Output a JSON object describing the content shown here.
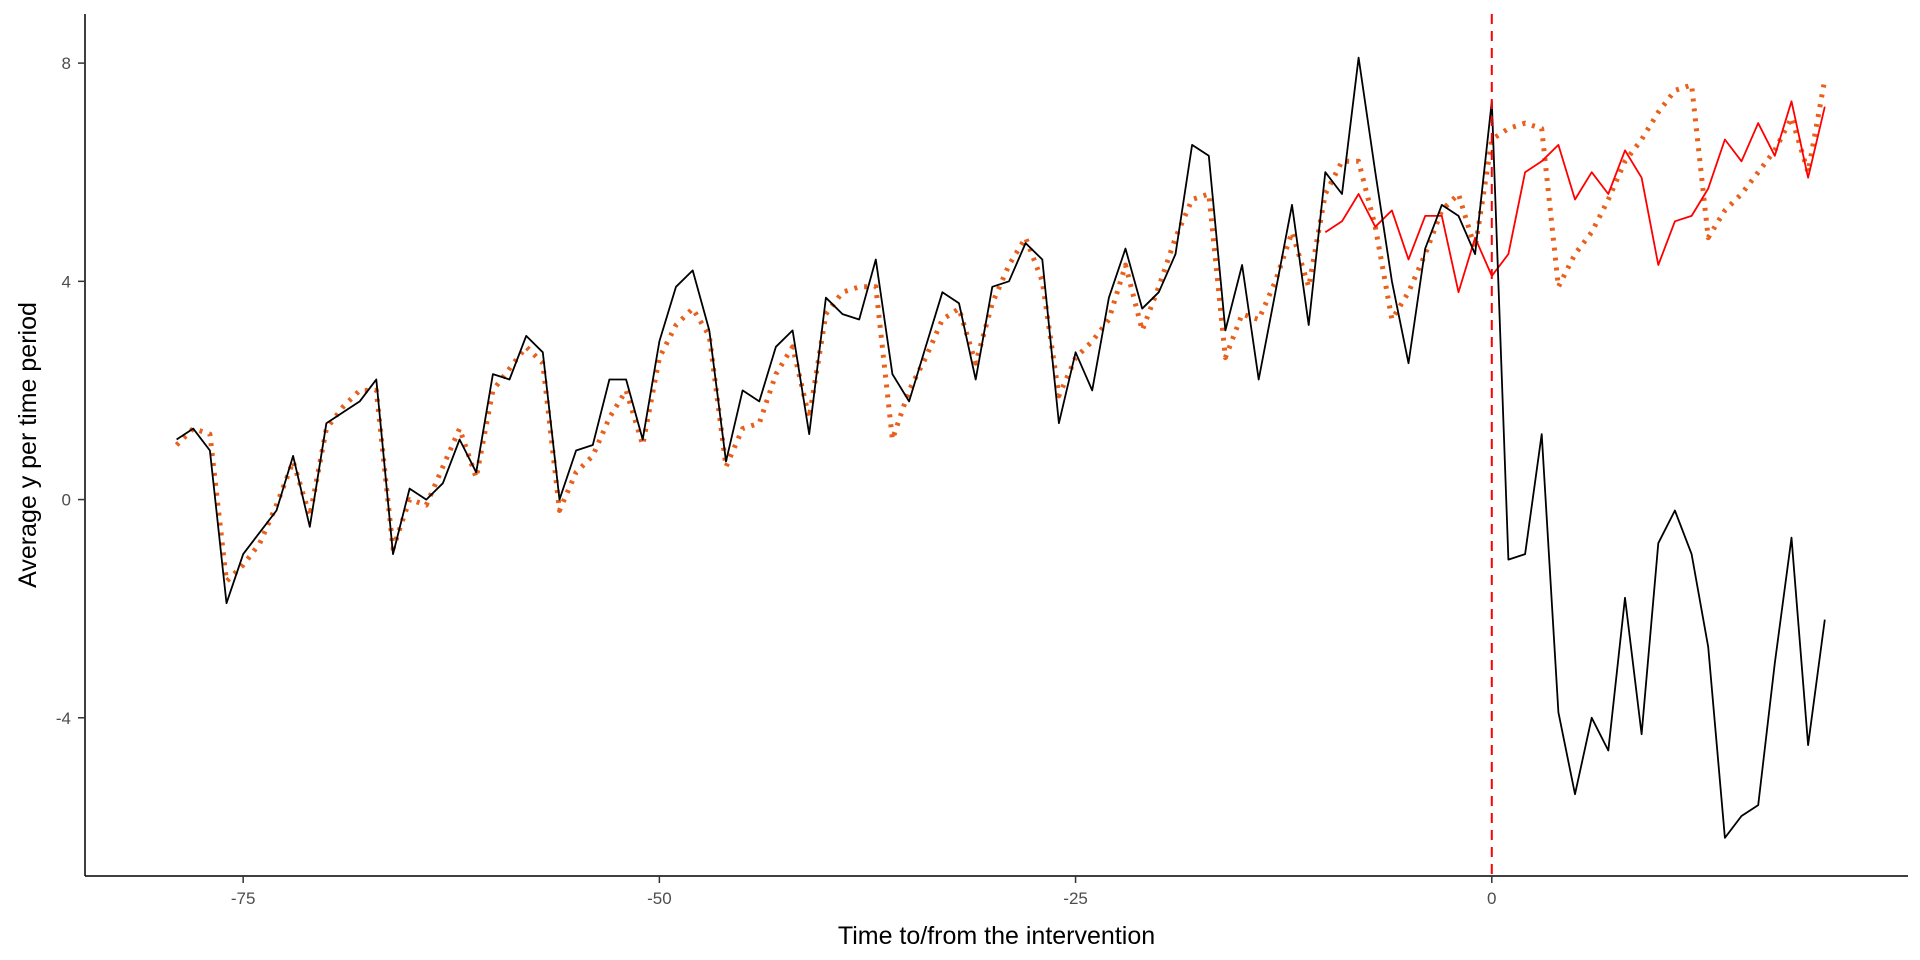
{
  "chart_data": {
    "type": "line",
    "xlabel": "Time to/from the intervention",
    "ylabel": "Average y per time period",
    "xlim": [
      -84.5,
      25
    ],
    "ylim": [
      -6.9,
      8.9
    ],
    "x_ticks": [
      -75,
      -50,
      -25,
      0
    ],
    "x_tick_labels": [
      "-75",
      "-50",
      "-25",
      "0"
    ],
    "y_ticks": [
      -4,
      0,
      4,
      8
    ],
    "y_tick_labels": [
      "-4",
      "0",
      "4",
      "8"
    ],
    "grid": false,
    "legend": "none",
    "vline": {
      "x": 0,
      "color": "#ff0000",
      "style": "dashed"
    },
    "series": [
      {
        "id": "observed",
        "color": "#000000",
        "style": "solid",
        "points": [
          [
            -79,
            1.1
          ],
          [
            -78,
            1.3
          ],
          [
            -77,
            0.9
          ],
          [
            -76,
            -1.9
          ],
          [
            -75,
            -1.0
          ],
          [
            -74,
            -0.6
          ],
          [
            -73,
            -0.2
          ],
          [
            -72,
            0.8
          ],
          [
            -71,
            -0.5
          ],
          [
            -70,
            1.4
          ],
          [
            -69,
            1.6
          ],
          [
            -68,
            1.8
          ],
          [
            -67,
            2.2
          ],
          [
            -66,
            -1.0
          ],
          [
            -65,
            0.2
          ],
          [
            -64,
            0.0
          ],
          [
            -63,
            0.3
          ],
          [
            -62,
            1.1
          ],
          [
            -61,
            0.5
          ],
          [
            -60,
            2.3
          ],
          [
            -59,
            2.2
          ],
          [
            -58,
            3.0
          ],
          [
            -57,
            2.7
          ],
          [
            -56,
            0.0
          ],
          [
            -55,
            0.9
          ],
          [
            -54,
            1.0
          ],
          [
            -53,
            2.2
          ],
          [
            -52,
            2.2
          ],
          [
            -51,
            1.1
          ],
          [
            -50,
            2.9
          ],
          [
            -49,
            3.9
          ],
          [
            -48,
            4.2
          ],
          [
            -47,
            3.1
          ],
          [
            -46,
            0.7
          ],
          [
            -45,
            2.0
          ],
          [
            -44,
            1.8
          ],
          [
            -43,
            2.8
          ],
          [
            -42,
            3.1
          ],
          [
            -41,
            1.2
          ],
          [
            -40,
            3.7
          ],
          [
            -39,
            3.4
          ],
          [
            -38,
            3.3
          ],
          [
            -37,
            4.4
          ],
          [
            -36,
            2.3
          ],
          [
            -35,
            1.8
          ],
          [
            -34,
            2.8
          ],
          [
            -33,
            3.8
          ],
          [
            -32,
            3.6
          ],
          [
            -31,
            2.2
          ],
          [
            -30,
            3.9
          ],
          [
            -29,
            4.0
          ],
          [
            -28,
            4.7
          ],
          [
            -27,
            4.4
          ],
          [
            -26,
            1.4
          ],
          [
            -25,
            2.7
          ],
          [
            -24,
            2.0
          ],
          [
            -23,
            3.7
          ],
          [
            -22,
            4.6
          ],
          [
            -21,
            3.5
          ],
          [
            -20,
            3.8
          ],
          [
            -19,
            4.5
          ],
          [
            -18,
            6.5
          ],
          [
            -17,
            6.3
          ],
          [
            -16,
            3.1
          ],
          [
            -15,
            4.3
          ],
          [
            -14,
            2.2
          ],
          [
            -13,
            3.8
          ],
          [
            -12,
            5.4
          ],
          [
            -11,
            3.2
          ],
          [
            -10,
            6.0
          ],
          [
            -9,
            5.6
          ],
          [
            -8,
            8.1
          ],
          [
            -7,
            6.0
          ],
          [
            -6,
            4.0
          ],
          [
            -5,
            2.5
          ],
          [
            -4,
            4.6
          ],
          [
            -3,
            5.4
          ],
          [
            -2,
            5.2
          ],
          [
            -1,
            4.5
          ],
          [
            0,
            7.3
          ],
          [
            1,
            -1.1
          ],
          [
            2,
            -1.0
          ],
          [
            3,
            1.2
          ],
          [
            4,
            -3.9
          ],
          [
            5,
            -5.4
          ],
          [
            6,
            -4.0
          ],
          [
            7,
            -4.6
          ],
          [
            8,
            -1.8
          ],
          [
            9,
            -4.3
          ],
          [
            10,
            -0.8
          ],
          [
            11,
            -0.2
          ],
          [
            12,
            -1.0
          ],
          [
            13,
            -2.7
          ],
          [
            14,
            -6.2
          ],
          [
            15,
            -5.8
          ],
          [
            16,
            -5.6
          ],
          [
            17,
            -3.0
          ],
          [
            18,
            -0.7
          ],
          [
            19,
            -4.5
          ],
          [
            20,
            -2.2
          ]
        ]
      },
      {
        "id": "fitted",
        "color": "#e8601c",
        "style": "dotted",
        "points": [
          [
            -79,
            1.0
          ],
          [
            -78,
            1.3
          ],
          [
            -77,
            1.2
          ],
          [
            -76,
            -1.5
          ],
          [
            -75,
            -1.2
          ],
          [
            -74,
            -0.8
          ],
          [
            -73,
            -0.1
          ],
          [
            -72,
            0.7
          ],
          [
            -71,
            -0.3
          ],
          [
            -70,
            1.3
          ],
          [
            -69,
            1.7
          ],
          [
            -68,
            2.0
          ],
          [
            -67,
            2.0
          ],
          [
            -66,
            -0.9
          ],
          [
            -65,
            0.0
          ],
          [
            -64,
            -0.1
          ],
          [
            -63,
            0.6
          ],
          [
            -62,
            1.3
          ],
          [
            -61,
            0.4
          ],
          [
            -60,
            2.0
          ],
          [
            -59,
            2.4
          ],
          [
            -58,
            2.8
          ],
          [
            -57,
            2.5
          ],
          [
            -56,
            -0.2
          ],
          [
            -55,
            0.5
          ],
          [
            -54,
            0.8
          ],
          [
            -53,
            1.5
          ],
          [
            -52,
            2.0
          ],
          [
            -51,
            1.0
          ],
          [
            -50,
            2.6
          ],
          [
            -49,
            3.2
          ],
          [
            -48,
            3.5
          ],
          [
            -47,
            3.0
          ],
          [
            -46,
            0.6
          ],
          [
            -45,
            1.3
          ],
          [
            -44,
            1.4
          ],
          [
            -43,
            2.3
          ],
          [
            -42,
            2.8
          ],
          [
            -41,
            1.5
          ],
          [
            -40,
            3.4
          ],
          [
            -39,
            3.8
          ],
          [
            -38,
            3.9
          ],
          [
            -37,
            3.9
          ],
          [
            -36,
            1.1
          ],
          [
            -35,
            2.0
          ],
          [
            -34,
            2.6
          ],
          [
            -33,
            3.3
          ],
          [
            -32,
            3.5
          ],
          [
            -31,
            2.5
          ],
          [
            -30,
            3.6
          ],
          [
            -29,
            4.3
          ],
          [
            -28,
            4.8
          ],
          [
            -27,
            4.0
          ],
          [
            -26,
            1.9
          ],
          [
            -25,
            2.6
          ],
          [
            -24,
            2.9
          ],
          [
            -23,
            3.3
          ],
          [
            -22,
            4.3
          ],
          [
            -21,
            3.1
          ],
          [
            -20,
            3.9
          ],
          [
            -19,
            4.8
          ],
          [
            -18,
            5.5
          ],
          [
            -17,
            5.6
          ],
          [
            -16,
            2.6
          ],
          [
            -15,
            3.4
          ],
          [
            -14,
            3.3
          ],
          [
            -13,
            4.0
          ],
          [
            -12,
            4.9
          ],
          [
            -11,
            3.9
          ],
          [
            -10,
            5.6
          ],
          [
            -9,
            6.2
          ],
          [
            -8,
            6.2
          ],
          [
            -7,
            5.0
          ],
          [
            -6,
            3.3
          ],
          [
            -5,
            3.8
          ],
          [
            -4,
            4.5
          ],
          [
            -3,
            5.3
          ],
          [
            -2,
            5.6
          ],
          [
            -1,
            4.6
          ],
          [
            0,
            6.6
          ],
          [
            1,
            6.8
          ],
          [
            2,
            6.9
          ],
          [
            3,
            6.8
          ],
          [
            4,
            3.9
          ],
          [
            5,
            4.5
          ],
          [
            6,
            4.9
          ],
          [
            7,
            5.5
          ],
          [
            8,
            6.2
          ],
          [
            9,
            6.6
          ],
          [
            10,
            7.1
          ],
          [
            11,
            7.5
          ],
          [
            12,
            7.6
          ],
          [
            13,
            4.8
          ],
          [
            14,
            5.3
          ],
          [
            15,
            5.6
          ],
          [
            16,
            6.0
          ],
          [
            17,
            6.4
          ],
          [
            18,
            7.0
          ],
          [
            19,
            6.0
          ],
          [
            20,
            7.7
          ]
        ]
      },
      {
        "id": "counterfactual",
        "color": "#ff0000",
        "style": "solid",
        "points": [
          [
            -10,
            4.9
          ],
          [
            -9,
            5.1
          ],
          [
            -8,
            5.6
          ],
          [
            -7,
            5.0
          ],
          [
            -6,
            5.3
          ],
          [
            -5,
            4.4
          ],
          [
            -4,
            5.2
          ],
          [
            -3,
            5.2
          ],
          [
            -2,
            3.8
          ],
          [
            -1,
            4.8
          ],
          [
            0,
            4.1
          ],
          [
            1,
            4.5
          ],
          [
            2,
            6.0
          ],
          [
            3,
            6.2
          ],
          [
            4,
            6.5
          ],
          [
            5,
            5.5
          ],
          [
            6,
            6.0
          ],
          [
            7,
            5.6
          ],
          [
            8,
            6.4
          ],
          [
            9,
            5.9
          ],
          [
            10,
            4.3
          ],
          [
            11,
            5.1
          ],
          [
            12,
            5.2
          ],
          [
            13,
            5.7
          ],
          [
            14,
            6.6
          ],
          [
            15,
            6.2
          ],
          [
            16,
            6.9
          ],
          [
            17,
            6.3
          ],
          [
            18,
            7.3
          ],
          [
            19,
            5.9
          ],
          [
            20,
            7.2
          ]
        ]
      }
    ]
  }
}
